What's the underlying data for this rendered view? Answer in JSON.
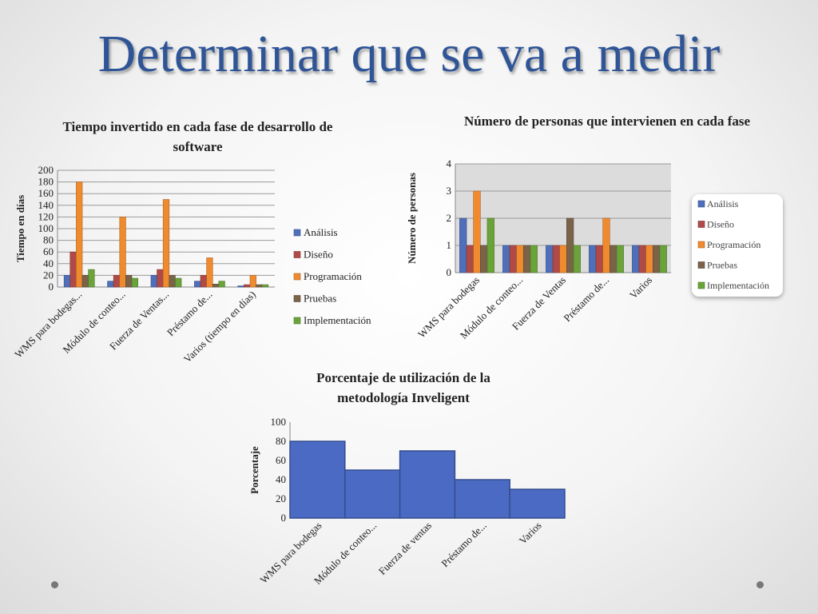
{
  "slide": {
    "title": "Determinar que se va a medir"
  },
  "colors": {
    "Análisis": "#4f6fba",
    "Diseño": "#b04a47",
    "Programación": "#ef8a2f",
    "Pruebas": "#7a6349",
    "Implementación": "#6aa339",
    "single": "#4a6ac4"
  },
  "chart_data": [
    {
      "type": "bar",
      "title": "Tiempo invertido en cada fase de desarrollo de software",
      "ylabel": "Tiempo en días",
      "categories": [
        "WMS para bodegas...",
        "Módulo de conteo...",
        "Fuerza de Ventas...",
        "Préstamo de...",
        "Varios (tiempo en días)"
      ],
      "series": [
        {
          "name": "Análisis",
          "values": [
            20,
            10,
            20,
            10,
            2
          ]
        },
        {
          "name": "Diseño",
          "values": [
            60,
            20,
            30,
            20,
            4
          ]
        },
        {
          "name": "Programación",
          "values": [
            180,
            120,
            150,
            50,
            20
          ]
        },
        {
          "name": "Pruebas",
          "values": [
            20,
            20,
            20,
            5,
            4
          ]
        },
        {
          "name": "Implementación",
          "values": [
            30,
            15,
            15,
            10,
            4
          ]
        }
      ],
      "ylim": [
        0,
        200
      ],
      "yticks": [
        0,
        20,
        40,
        60,
        80,
        100,
        120,
        140,
        160,
        180,
        200
      ],
      "legend": "right"
    },
    {
      "type": "bar",
      "title": "Número de personas que intervienen en cada fase",
      "ylabel": "Número de personas",
      "categories": [
        "WMS para bodegas",
        "Módulo de conteo...",
        "Fuerza de Ventas",
        "Préstamo de...",
        "Varios"
      ],
      "series": [
        {
          "name": "Análisis",
          "values": [
            2,
            1,
            1,
            1,
            1
          ]
        },
        {
          "name": "Diseño",
          "values": [
            1,
            1,
            1,
            1,
            1
          ]
        },
        {
          "name": "Programación",
          "values": [
            3,
            1,
            1,
            2,
            1
          ]
        },
        {
          "name": "Pruebas",
          "values": [
            1,
            1,
            2,
            1,
            1
          ]
        },
        {
          "name": "Implementación",
          "values": [
            2,
            1,
            1,
            1,
            1
          ]
        }
      ],
      "ylim": [
        0,
        4
      ],
      "yticks": [
        0,
        1,
        2,
        3,
        4
      ],
      "grid": true,
      "legend": "right"
    },
    {
      "type": "bar",
      "title": "Porcentaje de utilización de la metodología Inveligent",
      "ylabel": "Porcentaje",
      "categories": [
        "WMS para bodegas",
        "Módulo de conteo...",
        "Fuerza de ventas",
        "Préstamo de...",
        "Varios"
      ],
      "values": [
        80,
        50,
        70,
        40,
        30
      ],
      "ylim": [
        0,
        100
      ],
      "yticks": [
        0,
        20,
        40,
        60,
        80,
        100
      ]
    }
  ]
}
